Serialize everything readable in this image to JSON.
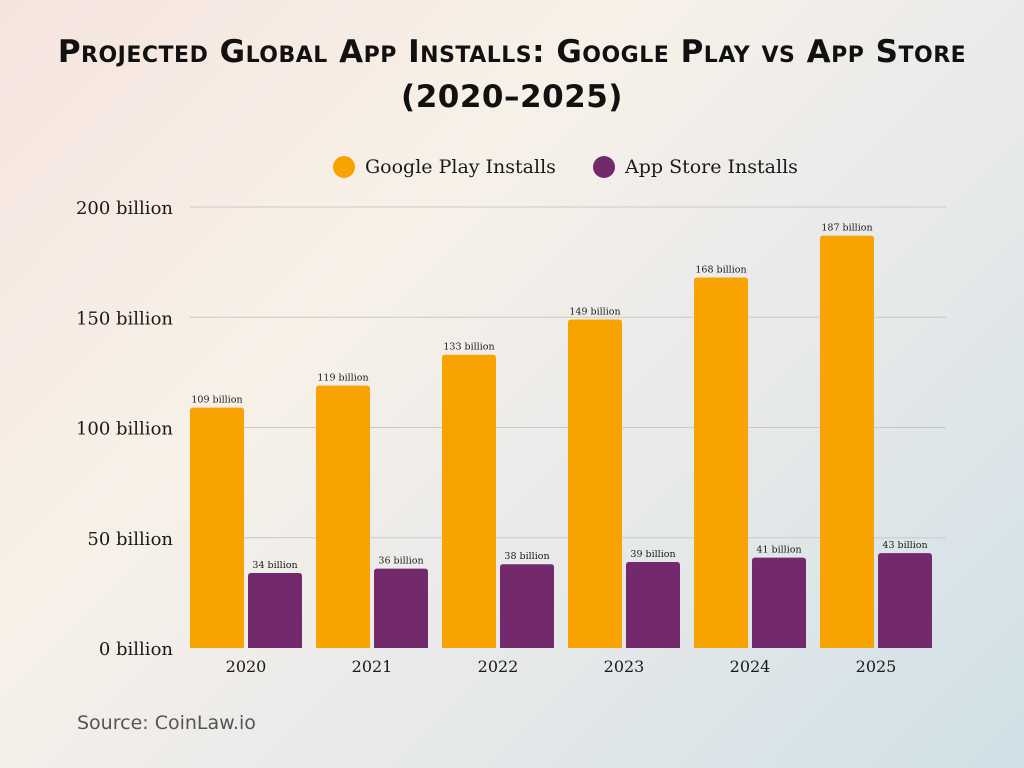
{
  "chart_data": {
    "type": "bar",
    "title": "Projected Global App Installs: Google Play vs App Store (2020–2025)",
    "categories": [
      "2020",
      "2021",
      "2022",
      "2023",
      "2024",
      "2025"
    ],
    "series": [
      {
        "name": "Google Play Installs",
        "color": "#F9A302",
        "values": [
          109,
          119,
          133,
          149,
          168,
          187
        ],
        "labels": [
          "109 billion",
          "119 billion",
          "133 billion",
          "149 billion",
          "168 billion",
          "187 billion"
        ]
      },
      {
        "name": "App Store Installs",
        "color": "#722A6D",
        "values": [
          34,
          36,
          38,
          39,
          41,
          43
        ],
        "labels": [
          "34 billion",
          "36 billion",
          "38 billion",
          "39 billion",
          "41 billion",
          "43 billion"
        ]
      }
    ],
    "ylim": [
      0,
      200
    ],
    "yticks": [
      0,
      50,
      100,
      150,
      200
    ],
    "ytick_labels": [
      "0 billion",
      "50 billion",
      "100 billion",
      "150 billion",
      "200 billion"
    ],
    "xlabel": "",
    "ylabel": "",
    "grid": true,
    "legend_position": "top-center"
  },
  "source": "Source: CoinLaw.io"
}
